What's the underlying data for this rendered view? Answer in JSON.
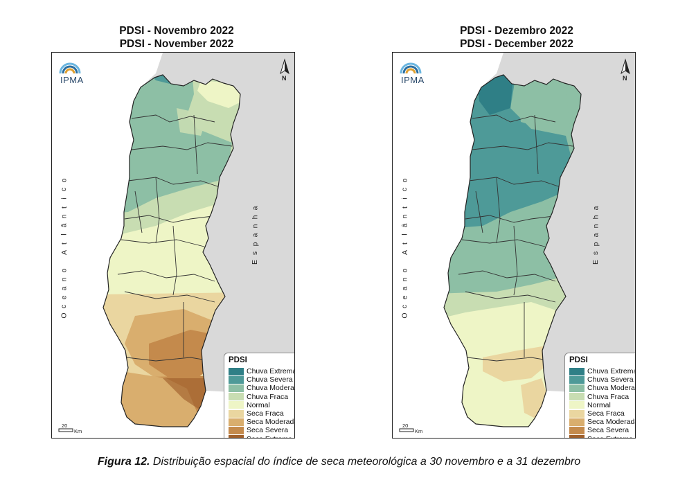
{
  "maps": [
    {
      "title_pt": "PDSI - Novembro 2022",
      "title_en": "PDSI - November 2022"
    },
    {
      "title_pt": "PDSI - Dezembro 2022",
      "title_en": "PDSI - December 2022"
    }
  ],
  "logo_text": "IPMA",
  "ocean_label": "Oceano Atlântico",
  "ocean_letters": [
    "O",
    "c",
    "e",
    "a",
    "n",
    "o",
    " ",
    "A",
    "t",
    "l",
    "â",
    "n",
    "t",
    "i",
    "c",
    "o"
  ],
  "spain_label": "Espanha",
  "spain_letters": [
    "E",
    "s",
    "p",
    "a",
    "n",
    "h",
    "a"
  ],
  "north_label": "N",
  "scale_value": "20",
  "scale_unit": "Km",
  "legend": {
    "title": "PDSI",
    "items": [
      {
        "label": "Chuva Extrema",
        "color": "#2f7f86"
      },
      {
        "label": "Chuva Severa",
        "color": "#4e9a98"
      },
      {
        "label": "Chuva Moderada",
        "color": "#8dbfa5"
      },
      {
        "label": "Chuva Fraca",
        "color": "#c8ddb2"
      },
      {
        "label": "Normal",
        "color": "#eef5c6"
      },
      {
        "label": "Seca Fraca",
        "color": "#ead6a0"
      },
      {
        "label": "Seca Moderada",
        "color": "#d9ae6e"
      },
      {
        "label": "Seca Severa",
        "color": "#c48a4c"
      },
      {
        "label": "Seca Extrema",
        "color": "#a0602c"
      }
    ]
  },
  "caption": {
    "label": "Figura 12.",
    "text": " Distribuição espacial do índice de seca meteorológica a 30 novembro e a 31 dezembro"
  }
}
